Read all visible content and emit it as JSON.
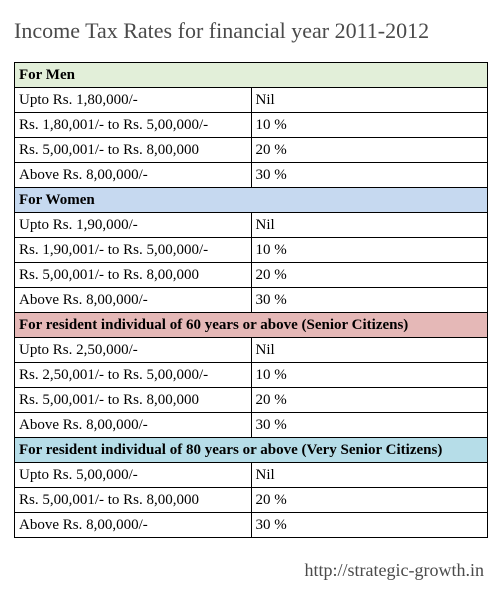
{
  "title": "Income Tax Rates for financial year 2011-2012",
  "footer": "http://strategic-growth.in",
  "colors": {
    "men_header": "#e2efd9",
    "women_header": "#c6d9f0",
    "senior_header": "#e5b8b7",
    "vsenior_header": "#b6dde8",
    "border": "#000000",
    "title_text": "#4a4a4a",
    "body_text": "#000000",
    "background": "#ffffff"
  },
  "typography": {
    "title_fontsize": 22,
    "cell_fontsize": 15,
    "footer_fontsize": 18,
    "title_font": "Georgia",
    "cell_font": "Times New Roman"
  },
  "layout": {
    "range_col_width_pct": 78,
    "rate_col_width_pct": 22
  },
  "sections": {
    "men": {
      "header": "For Men",
      "rows": [
        {
          "range": "Upto Rs. 1,80,000/-",
          "rate": "Nil"
        },
        {
          "range": "Rs. 1,80,001/- to Rs. 5,00,000/-",
          "rate": "10 %"
        },
        {
          "range": "Rs. 5,00,001/- to Rs. 8,00,000",
          "rate": "20 %"
        },
        {
          "range": "Above Rs. 8,00,000/-",
          "rate": "30 %"
        }
      ]
    },
    "women": {
      "header": "For Women",
      "rows": [
        {
          "range": "Upto Rs. 1,90,000/-",
          "rate": "Nil"
        },
        {
          "range": "Rs. 1,90,001/- to Rs. 5,00,000/-",
          "rate": "10 %"
        },
        {
          "range": "Rs. 5,00,001/- to Rs. 8,00,000",
          "rate": "20 %"
        },
        {
          "range": "Above Rs. 8,00,000/-",
          "rate": "30 %"
        }
      ]
    },
    "senior": {
      "header": "For resident individual of 60 years or above (Senior Citizens)",
      "rows": [
        {
          "range": "Upto Rs. 2,50,000/-",
          "rate": "Nil"
        },
        {
          "range": "Rs. 2,50,001/- to Rs. 5,00,000/-",
          "rate": "10 %"
        },
        {
          "range": "Rs. 5,00,001/- to Rs. 8,00,000",
          "rate": "20 %"
        },
        {
          "range": "Above Rs. 8,00,000/-",
          "rate": "30 %"
        }
      ]
    },
    "vsenior": {
      "header": "For resident individual of 80 years or above (Very Senior Citizens)",
      "rows": [
        {
          "range": "Upto Rs. 5,00,000/-",
          "rate": "Nil"
        },
        {
          "range": "Rs. 5,00,001/- to Rs. 8,00,000",
          "rate": "20 %"
        },
        {
          "range": "Above Rs. 8,00,000/-",
          "rate": "30 %"
        }
      ]
    }
  }
}
